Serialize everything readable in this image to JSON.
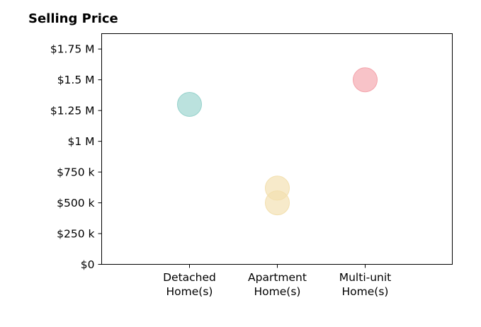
{
  "chart_data": {
    "type": "scatter",
    "title": "Selling Price",
    "xlabel": "",
    "ylabel": "",
    "categories": [
      [
        "Detached",
        "Home(s)"
      ],
      [
        "Apartment",
        "Home(s)"
      ],
      [
        "Multi-unit",
        "Home(s)"
      ]
    ],
    "ylim": [
      0,
      1875000
    ],
    "yticks": [
      0,
      250000,
      500000,
      750000,
      1000000,
      1250000,
      1500000,
      1750000
    ],
    "ytick_labels": [
      "$0",
      "$250 k",
      "$500 k",
      "$750 k",
      "$1 M",
      "$1.25 M",
      "$1.5 M",
      "$1.75 M"
    ],
    "grid": false,
    "points": [
      {
        "category_index": 0,
        "value": 1300000,
        "color": "#96d2cc"
      },
      {
        "category_index": 1,
        "value": 620000,
        "color": "#f2dfae"
      },
      {
        "category_index": 1,
        "value": 500000,
        "color": "#f2dfae"
      },
      {
        "category_index": 2,
        "value": 1500000,
        "color": "#f4a3ab"
      }
    ]
  }
}
